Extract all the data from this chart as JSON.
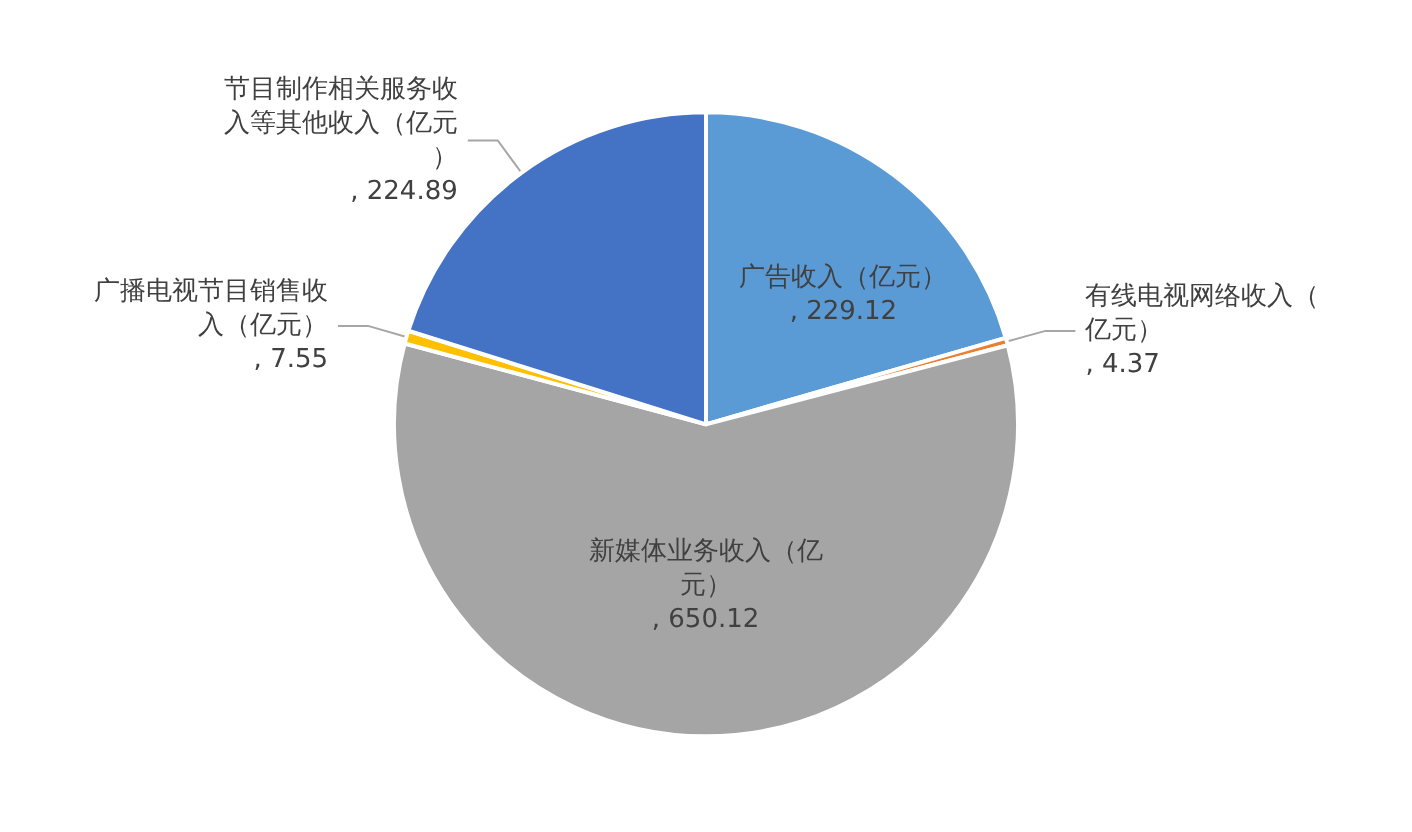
{
  "chart_data": {
    "type": "pie",
    "categories": [
      "广告收入（亿元）",
      "有线电视网络收入（亿元）",
      "新媒体业务收入（亿元）",
      "广播电视节目销售收入（亿元）",
      "节目制作相关服务收入等其他收入（亿元）"
    ],
    "values": [
      229.12,
      4.37,
      650.12,
      7.55,
      224.89
    ],
    "colors": [
      "#5b9bd5",
      "#ed7d31",
      "#a5a5a5",
      "#ffc000",
      "#4472c4"
    ],
    "value_labels": [
      ", 229.12",
      ", 4.37",
      ", 650.12",
      ", 7.55",
      ", 224.89"
    ],
    "legend": false
  }
}
